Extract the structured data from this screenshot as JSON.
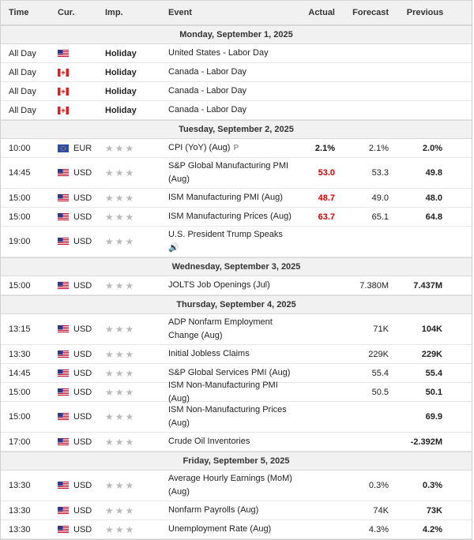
{
  "headers": {
    "time": "Time",
    "cur": "Cur.",
    "imp": "Imp.",
    "event": "Event",
    "actual": "Actual",
    "forecast": "Forecast",
    "previous": "Previous"
  },
  "days": [
    {
      "label": "Monday, September 1, 2025",
      "events": [
        {
          "time": "All Day",
          "flag": "us",
          "cur": "",
          "holiday": "Holiday",
          "event": "United States - Labor Day",
          "actual": "",
          "forecast": "",
          "previous": ""
        },
        {
          "time": "All Day",
          "flag": "ca",
          "cur": "",
          "holiday": "Holiday",
          "event": "Canada - Labor Day",
          "actual": "",
          "forecast": "",
          "previous": ""
        },
        {
          "time": "All Day",
          "flag": "ca",
          "cur": "",
          "holiday": "Holiday",
          "event": "Canada - Labor Day",
          "actual": "",
          "forecast": "",
          "previous": ""
        },
        {
          "time": "All Day",
          "flag": "ca",
          "cur": "",
          "holiday": "Holiday",
          "event": "Canada - Labor Day",
          "actual": "",
          "forecast": "",
          "previous": ""
        }
      ]
    },
    {
      "label": "Tuesday, September 2, 2025",
      "events": [
        {
          "time": "10:00",
          "flag": "eu",
          "cur": "EUR",
          "stars": "★★★",
          "event": "CPI (YoY) (Aug)",
          "prelim": "P",
          "actual": "2.1%",
          "actual_color": "pos",
          "forecast": "2.1%",
          "previous": "2.0%"
        },
        {
          "time": "14:45",
          "flag": "us",
          "cur": "USD",
          "stars": "★★★",
          "event": "S&P Global Manufacturing PMI (Aug)",
          "actual": "53.0",
          "actual_color": "neg",
          "forecast": "53.3",
          "previous": "49.8"
        },
        {
          "time": "15:00",
          "flag": "us",
          "cur": "USD",
          "stars": "★★★",
          "event": "ISM Manufacturing PMI (Aug)",
          "actual": "48.7",
          "actual_color": "neg",
          "forecast": "49.0",
          "previous": "48.0"
        },
        {
          "time": "15:00",
          "flag": "us",
          "cur": "USD",
          "stars": "★★★",
          "event": "ISM Manufacturing Prices (Aug)",
          "actual": "63.7",
          "actual_color": "neg",
          "forecast": "65.1",
          "previous": "64.8"
        },
        {
          "time": "19:00",
          "flag": "us",
          "cur": "USD",
          "stars": "★★★",
          "event": "U.S. President Trump Speaks",
          "speaker": "🔊",
          "actual": "",
          "forecast": "",
          "previous": ""
        }
      ]
    },
    {
      "label": "Wednesday, September 3, 2025",
      "events": [
        {
          "time": "15:00",
          "flag": "us",
          "cur": "USD",
          "stars": "★★★",
          "event": "JOLTS Job Openings (Jul)",
          "actual": "",
          "forecast": "7.380M",
          "previous": "7.437M"
        }
      ]
    },
    {
      "label": "Thursday, September 4, 2025",
      "events": [
        {
          "time": "13:15",
          "flag": "us",
          "cur": "USD",
          "stars": "★★★",
          "event": "ADP Nonfarm Employment Change (Aug)",
          "actual": "",
          "forecast": "71K",
          "previous": "104K"
        },
        {
          "time": "13:30",
          "flag": "us",
          "cur": "USD",
          "stars": "★★★",
          "event": "Initial Jobless Claims",
          "actual": "",
          "forecast": "229K",
          "previous": "229K"
        },
        {
          "time": "14:45",
          "flag": "us",
          "cur": "USD",
          "stars": "★★★",
          "event": "S&P Global Services PMI (Aug)",
          "actual": "",
          "forecast": "55.4",
          "previous": "55.4"
        },
        {
          "time": "15:00",
          "flag": "us",
          "cur": "USD",
          "stars": "★★★",
          "event": "ISM Non-Manufacturing PMI (Aug)",
          "actual": "",
          "forecast": "50.5",
          "previous": "50.1"
        },
        {
          "time": "15:00",
          "flag": "us",
          "cur": "USD",
          "stars": "★★★",
          "event": "ISM Non-Manufacturing Prices (Aug)",
          "actual": "",
          "forecast": "",
          "previous": "69.9"
        },
        {
          "time": "17:00",
          "flag": "us",
          "cur": "USD",
          "stars": "★★★",
          "event": "Crude Oil Inventories",
          "actual": "",
          "forecast": "",
          "previous": "-2.392M"
        }
      ]
    },
    {
      "label": "Friday, September 5, 2025",
      "events": [
        {
          "time": "13:30",
          "flag": "us",
          "cur": "USD",
          "stars": "★★★",
          "event": "Average Hourly Earnings (MoM) (Aug)",
          "actual": "",
          "forecast": "0.3%",
          "previous": "0.3%"
        },
        {
          "time": "13:30",
          "flag": "us",
          "cur": "USD",
          "stars": "★★★",
          "event": "Nonfarm Payrolls (Aug)",
          "actual": "",
          "forecast": "74K",
          "previous": "73K"
        },
        {
          "time": "13:30",
          "flag": "us",
          "cur": "USD",
          "stars": "★★★",
          "event": "Unemployment Rate (Aug)",
          "actual": "",
          "forecast": "4.3%",
          "previous": "4.2%"
        }
      ]
    }
  ],
  "colors": {
    "negative": "#d60000",
    "header_bg": "#f1f1f1"
  },
  "flag_icons": {
    "us": "us-flag-icon",
    "ca": "canada-flag-icon",
    "eu": "eu-flag-icon"
  }
}
